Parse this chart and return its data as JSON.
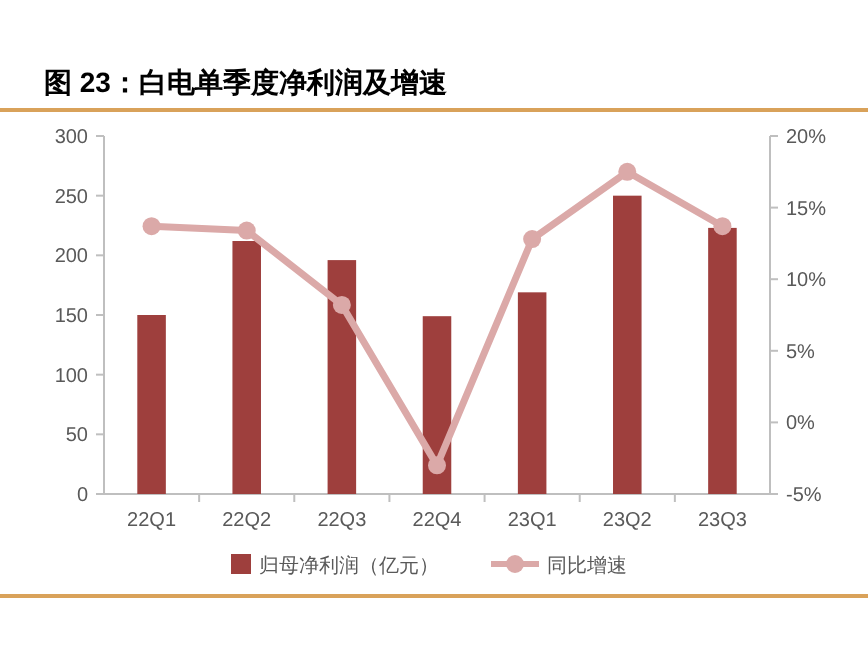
{
  "chart_data": {
    "type": "bar",
    "title": "图 23：白电单季度净利润及增速",
    "categories": [
      "22Q1",
      "22Q2",
      "22Q3",
      "22Q4",
      "23Q1",
      "23Q2",
      "23Q3"
    ],
    "series": [
      {
        "name": "归母净利润（亿元）",
        "color": "#9e3f3d",
        "values": [
          150,
          212,
          196,
          149,
          169,
          250,
          223
        ]
      },
      {
        "name": "同比增速",
        "type": "line",
        "axis": "y2",
        "color": "#dba9a8",
        "marker": "circle",
        "values": [
          13.7,
          13.4,
          8.2,
          -3.0,
          12.8,
          17.5,
          13.7
        ]
      }
    ],
    "ylim": [
      0,
      300
    ],
    "yticks": [
      0,
      50,
      100,
      150,
      200,
      250,
      300
    ],
    "y2lim": [
      -5,
      20
    ],
    "y2ticks": [
      {
        "value": -5,
        "label": "-5%"
      },
      {
        "value": 0,
        "label": "0%"
      },
      {
        "value": 5,
        "label": "5%"
      },
      {
        "value": 10,
        "label": "10%"
      },
      {
        "value": 15,
        "label": "15%"
      },
      {
        "value": 20,
        "label": "20%"
      }
    ],
    "legend": "bottom",
    "grid": false
  }
}
